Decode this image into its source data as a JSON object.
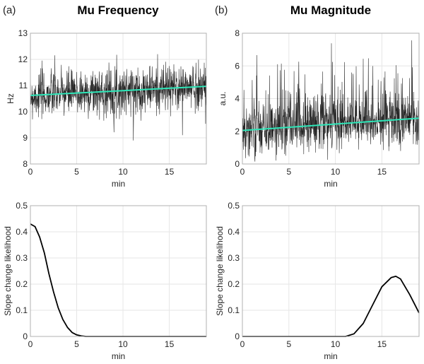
{
  "panel_labels": [
    "(a)",
    "(b)"
  ],
  "colors": {
    "signal": "#000000",
    "trend": "#2ee6b8",
    "curve": "#000000",
    "grid": "#e6e6e6",
    "axis": "#b0b0b0"
  },
  "chart_data": [
    {
      "type": "line",
      "title": "Mu Frequency",
      "xlabel": "min",
      "ylabel": "Hz",
      "xlim": [
        0,
        19
      ],
      "ylim": [
        8,
        13
      ],
      "xticks": [
        "0",
        "5",
        "10",
        "15"
      ],
      "yticks": [
        "8",
        "9",
        "10",
        "11",
        "12",
        "13"
      ],
      "grid": true,
      "series": [
        {
          "kind": "noisy-signal",
          "mean_start": 10.62,
          "mean_end": 10.97,
          "range": [
            8.6,
            12.2
          ]
        },
        {
          "kind": "linear-trend",
          "x": [
            0,
            19
          ],
          "y": [
            10.62,
            10.97
          ]
        }
      ]
    },
    {
      "type": "line",
      "title": "Mu Magnitude",
      "xlabel": "min",
      "ylabel": "a.u.",
      "xlim": [
        0,
        19
      ],
      "ylim": [
        0,
        8
      ],
      "xticks": [
        "0",
        "5",
        "10",
        "15"
      ],
      "yticks": [
        "0",
        "2",
        "4",
        "6",
        "8"
      ],
      "grid": true,
      "series": [
        {
          "kind": "noisy-signal",
          "mean_start": 2.05,
          "mean_end": 2.8,
          "range": [
            0.1,
            7.7
          ]
        },
        {
          "kind": "linear-trend",
          "x": [
            0,
            19
          ],
          "y": [
            2.05,
            2.8
          ]
        }
      ]
    },
    {
      "type": "line",
      "title": "",
      "xlabel": "min",
      "ylabel": "Slope change likelihood",
      "xlim": [
        0,
        19
      ],
      "ylim": [
        0,
        0.5
      ],
      "xticks": [
        "0",
        "5",
        "10",
        "15"
      ],
      "yticks": [
        "0",
        "0.1",
        "0.2",
        "0.3",
        "0.4",
        "0.5"
      ],
      "grid": true,
      "series": [
        {
          "x": [
            0,
            0.5,
            1,
            1.5,
            2,
            2.5,
            3,
            3.5,
            4,
            4.5,
            5,
            5.5,
            6,
            19
          ],
          "y": [
            0.43,
            0.42,
            0.38,
            0.32,
            0.24,
            0.17,
            0.11,
            0.065,
            0.035,
            0.015,
            0.006,
            0.002,
            0,
            0
          ]
        }
      ]
    },
    {
      "type": "line",
      "title": "",
      "xlabel": "min",
      "ylabel": "Slope change likelihood",
      "xlim": [
        0,
        19
      ],
      "ylim": [
        0,
        0.5
      ],
      "xticks": [
        "0",
        "5",
        "10",
        "15"
      ],
      "yticks": [
        "0",
        "0.1",
        "0.2",
        "0.3",
        "0.4",
        "0.5"
      ],
      "grid": true,
      "series": [
        {
          "x": [
            0,
            11.1,
            12,
            13,
            14,
            15,
            16,
            16.5,
            17,
            18,
            19
          ],
          "y": [
            0,
            0,
            0.01,
            0.05,
            0.12,
            0.19,
            0.225,
            0.23,
            0.22,
            0.16,
            0.09
          ]
        }
      ]
    }
  ]
}
